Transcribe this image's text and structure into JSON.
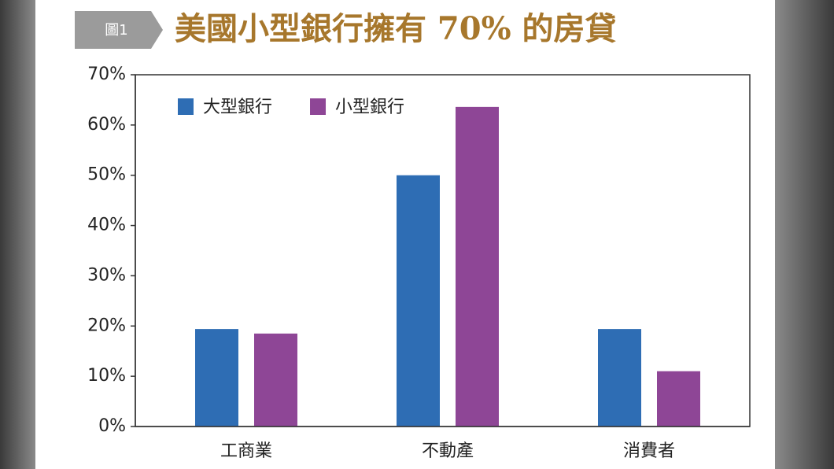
{
  "badge": "圖1",
  "chart_data": {
    "type": "bar",
    "title": "美國小型銀行擁有 70% 的房貸",
    "categories": [
      "工商業",
      "不動產",
      "消費者"
    ],
    "series": [
      {
        "name": "大型銀行",
        "color": "#2e6db4",
        "values": [
          19.4,
          50,
          19.4
        ]
      },
      {
        "name": "小型銀行",
        "color": "#8e4696",
        "values": [
          18.5,
          63.6,
          11.0
        ]
      }
    ],
    "ylim": [
      0,
      70
    ],
    "yticks": [
      {
        "value": 0,
        "label": "0%"
      },
      {
        "value": 10,
        "label": "10%"
      },
      {
        "value": 20,
        "label": "20%"
      },
      {
        "value": 30,
        "label": "30%"
      },
      {
        "value": 40,
        "label": "40%"
      },
      {
        "value": 50,
        "label": "50%"
      },
      {
        "value": 60,
        "label": "60%"
      },
      {
        "value": 70,
        "label": "70%"
      }
    ],
    "legend": "upper-left"
  }
}
